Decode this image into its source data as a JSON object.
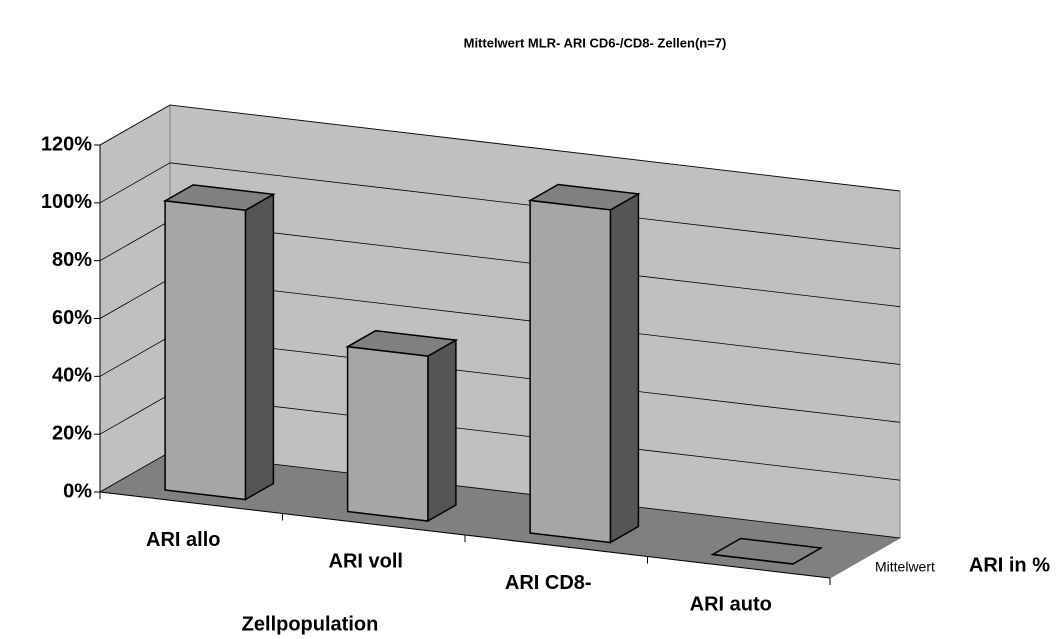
{
  "chart_data": {
    "type": "bar3d",
    "title": "Mittelwert MLR- ARI CD6-/CD8- Zellen(n=7)",
    "x_label": "Zellpopulation",
    "z_label": "ARI in %",
    "categories": [
      "ARI allo",
      "ARI voll",
      "ARI CD8-",
      "ARI auto"
    ],
    "series": [
      {
        "name": "Mittelwert",
        "color": "#a6a6a6",
        "values": [
          100,
          57,
          115,
          0
        ]
      }
    ],
    "ylim": [
      0,
      120
    ],
    "yticks": [
      {
        "value": 0,
        "label": "0%"
      },
      {
        "value": 20,
        "label": "20%"
      },
      {
        "value": 40,
        "label": "40%"
      },
      {
        "value": 60,
        "label": "60%"
      },
      {
        "value": 80,
        "label": "80%"
      },
      {
        "value": 100,
        "label": "100%"
      },
      {
        "value": 120,
        "label": "120%"
      }
    ],
    "grid": true
  }
}
